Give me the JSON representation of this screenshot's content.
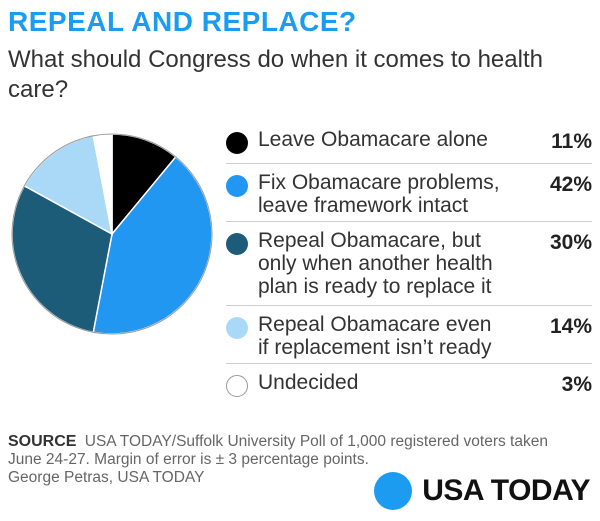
{
  "header": {
    "title": "REPEAL AND REPLACE?",
    "subtitle": "What should Congress do when it comes to health care?"
  },
  "chart_data": {
    "type": "pie",
    "slices": [
      {
        "label": "Leave Obamacare alone",
        "pct_label": "11%",
        "value": 11,
        "color": "#000000"
      },
      {
        "label": "Fix Obamacare problems, leave framework intact",
        "pct_label": "42%",
        "value": 42,
        "color": "#2197f2"
      },
      {
        "label": "Repeal Obamacare, but only when another health plan is ready to replace it",
        "pct_label": "30%",
        "value": 30,
        "color": "#1d5c79"
      },
      {
        "label": "Repeal Obamacare even if replacement isn’t ready",
        "pct_label": "14%",
        "value": 14,
        "color": "#aad8f7"
      },
      {
        "label": "Undecided",
        "pct_label": "3%",
        "value": 3,
        "color": "#ffffff"
      }
    ]
  },
  "legend_lines": [
    "Leave Obamacare alone",
    "Fix Obamacare problems,\nleave framework intact",
    "Repeal Obamacare, but\nonly when another health\nplan is ready to replace it",
    "Repeal Obamacare even\nif replacement isn’t ready",
    "Undecided"
  ],
  "footer": {
    "source_label": "SOURCE",
    "source_text": "USA TODAY/Suffolk University Poll of 1,000 registered voters taken June 24-27. Margin of error is ± 3 percentage points.",
    "credit": "George Petras, USA TODAY",
    "logo_text": "USA TODAY"
  }
}
